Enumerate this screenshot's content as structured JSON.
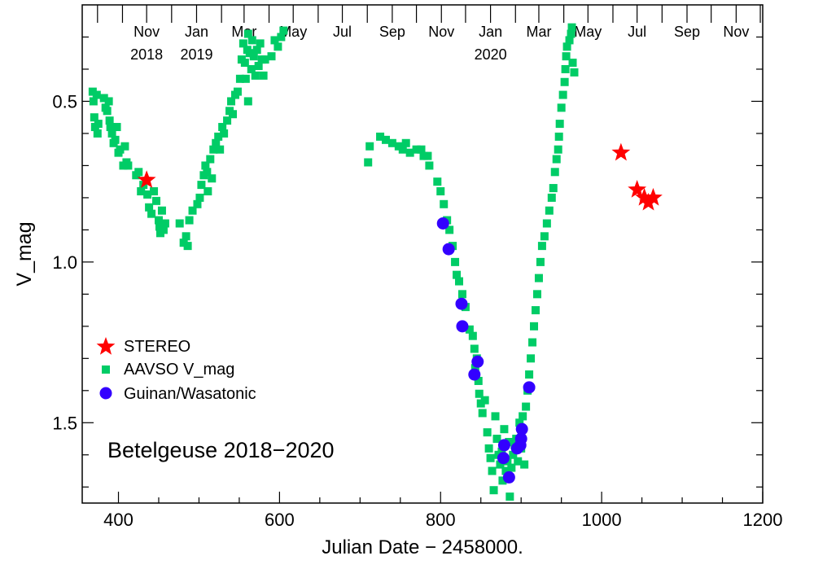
{
  "chart_data": {
    "type": "scatter",
    "xlabel": "Julian Date − 2458000.",
    "ylabel": "V_mag",
    "xlim": [
      355,
      1200
    ],
    "ylim": [
      0.2,
      1.75
    ],
    "y_inverted": true,
    "x_ticks": [
      "400",
      "600",
      "800",
      "1000",
      "1200"
    ],
    "y_ticks": [
      "0.5",
      "1.0",
      "1.5"
    ],
    "top_axis_ticks": [
      {
        "x": 345,
        "label": ""
      },
      {
        "x": 374,
        "label": ""
      },
      {
        "x": 405,
        "label": ""
      },
      {
        "x": 435,
        "label": "Nov"
      },
      {
        "x": 466,
        "label": ""
      },
      {
        "x": 497,
        "label": "Jan"
      },
      {
        "x": 528,
        "label": ""
      },
      {
        "x": 556,
        "label": "Mar"
      },
      {
        "x": 587,
        "label": ""
      },
      {
        "x": 617,
        "label": "May"
      },
      {
        "x": 648,
        "label": ""
      },
      {
        "x": 678,
        "label": "Jul"
      },
      {
        "x": 709,
        "label": ""
      },
      {
        "x": 740,
        "label": "Sep"
      },
      {
        "x": 770,
        "label": ""
      },
      {
        "x": 801,
        "label": "Nov"
      },
      {
        "x": 831,
        "label": ""
      },
      {
        "x": 862,
        "label": "Jan"
      },
      {
        "x": 893,
        "label": ""
      },
      {
        "x": 922,
        "label": "Mar"
      },
      {
        "x": 953,
        "label": ""
      },
      {
        "x": 983,
        "label": "May"
      },
      {
        "x": 1014,
        "label": ""
      },
      {
        "x": 1044,
        "label": "Jul"
      },
      {
        "x": 1075,
        "label": ""
      },
      {
        "x": 1106,
        "label": "Sep"
      },
      {
        "x": 1136,
        "label": ""
      },
      {
        "x": 1167,
        "label": "Nov"
      },
      {
        "x": 1197,
        "label": ""
      }
    ],
    "top_axis_years": [
      {
        "x": 435,
        "label": "2018"
      },
      {
        "x": 497,
        "label": "2019"
      },
      {
        "x": 862,
        "label": "2020"
      }
    ],
    "annotation": "Betelgeuse 2018−2020",
    "legend_position": "lower-left",
    "series": [
      {
        "name": "STEREO",
        "marker": "star",
        "color": "#ff0000",
        "points": [
          [
            435,
            0.745
          ],
          [
            1024,
            0.66
          ],
          [
            1044,
            0.775
          ],
          [
            1053,
            0.8
          ],
          [
            1058,
            0.815
          ],
          [
            1064,
            0.8
          ]
        ]
      },
      {
        "name": "AAVSO V_mag",
        "marker": "square",
        "color": "#00cc66",
        "points": [
          [
            368,
            0.47
          ],
          [
            369,
            0.5
          ],
          [
            370,
            0.55
          ],
          [
            371,
            0.58
          ],
          [
            373,
            0.48
          ],
          [
            374,
            0.6
          ],
          [
            375,
            0.57
          ],
          [
            382,
            0.49
          ],
          [
            384,
            0.52
          ],
          [
            386,
            0.53
          ],
          [
            388,
            0.5
          ],
          [
            389,
            0.56
          ],
          [
            390,
            0.58
          ],
          [
            392,
            0.6
          ],
          [
            394,
            0.63
          ],
          [
            396,
            0.62
          ],
          [
            398,
            0.58
          ],
          [
            400,
            0.66
          ],
          [
            402,
            0.65
          ],
          [
            406,
            0.7
          ],
          [
            408,
            0.64
          ],
          [
            410,
            0.69
          ],
          [
            412,
            0.7
          ],
          [
            422,
            0.73
          ],
          [
            425,
            0.72
          ],
          [
            428,
            0.78
          ],
          [
            431,
            0.76
          ],
          [
            436,
            0.79
          ],
          [
            438,
            0.83
          ],
          [
            441,
            0.85
          ],
          [
            444,
            0.78
          ],
          [
            447,
            0.81
          ],
          [
            450,
            0.87
          ],
          [
            451,
            0.89
          ],
          [
            452,
            0.91
          ],
          [
            454,
            0.84
          ],
          [
            456,
            0.9
          ],
          [
            458,
            0.88
          ],
          [
            476,
            0.88
          ],
          [
            481,
            0.94
          ],
          [
            484,
            0.92
          ],
          [
            486,
            0.95
          ],
          [
            488,
            0.87
          ],
          [
            492,
            0.84
          ],
          [
            498,
            0.82
          ],
          [
            501,
            0.8
          ],
          [
            503,
            0.76
          ],
          [
            506,
            0.73
          ],
          [
            508,
            0.7
          ],
          [
            510,
            0.72
          ],
          [
            511,
            0.78
          ],
          [
            514,
            0.68
          ],
          [
            516,
            0.74
          ],
          [
            518,
            0.65
          ],
          [
            521,
            0.63
          ],
          [
            524,
            0.61
          ],
          [
            526,
            0.65
          ],
          [
            529,
            0.58
          ],
          [
            531,
            0.6
          ],
          [
            535,
            0.56
          ],
          [
            538,
            0.53
          ],
          [
            540,
            0.5
          ],
          [
            542,
            0.54
          ],
          [
            545,
            0.48
          ],
          [
            548,
            0.47
          ],
          [
            551,
            0.43
          ],
          [
            553,
            0.37
          ],
          [
            555,
            0.32
          ],
          [
            557,
            0.38
          ],
          [
            558,
            0.43
          ],
          [
            560,
            0.34
          ],
          [
            561,
            0.29
          ],
          [
            563,
            0.35
          ],
          [
            565,
            0.4
          ],
          [
            566,
            0.31
          ],
          [
            568,
            0.36
          ],
          [
            570,
            0.42
          ],
          [
            572,
            0.34
          ],
          [
            574,
            0.39
          ],
          [
            576,
            0.32
          ],
          [
            578,
            0.37
          ],
          [
            580,
            0.42
          ],
          [
            582,
            0.37
          ],
          [
            590,
            0.36
          ],
          [
            594,
            0.31
          ],
          [
            598,
            0.33
          ],
          [
            602,
            0.3
          ],
          [
            605,
            0.28
          ],
          [
            561,
            0.5
          ],
          [
            710,
            0.69
          ],
          [
            712,
            0.64
          ],
          [
            725,
            0.61
          ],
          [
            732,
            0.62
          ],
          [
            740,
            0.63
          ],
          [
            748,
            0.64
          ],
          [
            753,
            0.65
          ],
          [
            757,
            0.63
          ],
          [
            762,
            0.66
          ],
          [
            770,
            0.65
          ],
          [
            776,
            0.65
          ],
          [
            779,
            0.67
          ],
          [
            784,
            0.67
          ],
          [
            786,
            0.7
          ],
          [
            796,
            0.75
          ],
          [
            800,
            0.78
          ],
          [
            804,
            0.82
          ],
          [
            808,
            0.87
          ],
          [
            811,
            0.9
          ],
          [
            815,
            0.95
          ],
          [
            818,
            1.0
          ],
          [
            820,
            1.04
          ],
          [
            823,
            1.06
          ],
          [
            827,
            1.1
          ],
          [
            831,
            1.14
          ],
          [
            836,
            1.21
          ],
          [
            840,
            1.23
          ],
          [
            842,
            1.27
          ],
          [
            843,
            1.33
          ],
          [
            845,
            1.3
          ],
          [
            847,
            1.37
          ],
          [
            848,
            1.41
          ],
          [
            850,
            1.44
          ],
          [
            852,
            1.47
          ],
          [
            855,
            1.43
          ],
          [
            858,
            1.53
          ],
          [
            860,
            1.58
          ],
          [
            862,
            1.61
          ],
          [
            864,
            1.65
          ],
          [
            866,
            1.71
          ],
          [
            868,
            1.48
          ],
          [
            870,
            1.55
          ],
          [
            872,
            1.6
          ],
          [
            874,
            1.63
          ],
          [
            876,
            1.59
          ],
          [
            877,
            1.68
          ],
          [
            879,
            1.52
          ],
          [
            881,
            1.65
          ],
          [
            883,
            1.62
          ],
          [
            885,
            1.56
          ],
          [
            886,
            1.73
          ],
          [
            888,
            1.64
          ],
          [
            890,
            1.6
          ],
          [
            892,
            1.57
          ],
          [
            894,
            1.55
          ],
          [
            896,
            1.62
          ],
          [
            898,
            1.5
          ],
          [
            900,
            1.58
          ],
          [
            902,
            1.48
          ],
          [
            904,
            1.63
          ],
          [
            906,
            1.45
          ],
          [
            908,
            1.4
          ],
          [
            910,
            1.35
          ],
          [
            912,
            1.3
          ],
          [
            914,
            1.25
          ],
          [
            916,
            1.2
          ],
          [
            918,
            1.15
          ],
          [
            920,
            1.1
          ],
          [
            922,
            1.05
          ],
          [
            924,
            1.0
          ],
          [
            926,
            0.95
          ],
          [
            929,
            0.92
          ],
          [
            932,
            0.88
          ],
          [
            935,
            0.84
          ],
          [
            938,
            0.8
          ],
          [
            940,
            0.77
          ],
          [
            942,
            0.72
          ],
          [
            944,
            0.68
          ],
          [
            946,
            0.65
          ],
          [
            947,
            0.61
          ],
          [
            948,
            0.57
          ],
          [
            950,
            0.52
          ],
          [
            952,
            0.48
          ],
          [
            954,
            0.44
          ],
          [
            955,
            0.4
          ],
          [
            956,
            0.36
          ],
          [
            957,
            0.33
          ],
          [
            960,
            0.31
          ],
          [
            962,
            0.29
          ],
          [
            963,
            0.27
          ],
          [
            964,
            0.38
          ],
          [
            966,
            0.41
          ]
        ]
      },
      {
        "name": "Guinan/Wasatonic",
        "marker": "circle",
        "color": "#3300ff",
        "points": [
          [
            803,
            0.88
          ],
          [
            810,
            0.96
          ],
          [
            826,
            1.13
          ],
          [
            827,
            1.2
          ],
          [
            846,
            1.31
          ],
          [
            842,
            1.35
          ],
          [
            910,
            1.39
          ],
          [
            879,
            1.57
          ],
          [
            878,
            1.61
          ],
          [
            885,
            1.67
          ],
          [
            895,
            1.58
          ],
          [
            899,
            1.57
          ],
          [
            900,
            1.55
          ],
          [
            901,
            1.52
          ]
        ]
      }
    ]
  }
}
